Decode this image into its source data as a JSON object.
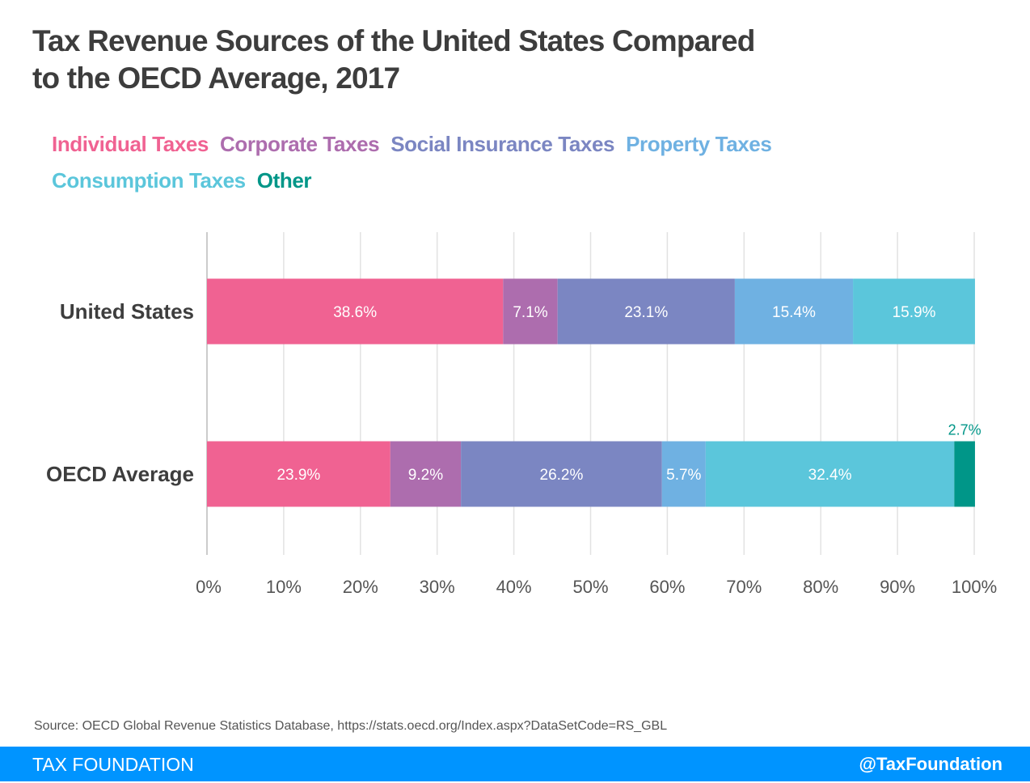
{
  "chart_data": {
    "type": "bar",
    "orientation": "horizontal",
    "stacked": true,
    "title": "Tax Revenue Sources of the United States Compared to the OECD Average, 2017",
    "categories": [
      "United States",
      "OECD Average"
    ],
    "series": [
      {
        "name": "Individual Taxes",
        "color": "#f06292",
        "values": [
          38.6,
          23.9
        ],
        "labels": [
          "38.6%",
          "23.9%"
        ]
      },
      {
        "name": "Corporate Taxes",
        "color": "#ad6dae",
        "values": [
          7.1,
          9.2
        ],
        "labels": [
          "7.1%",
          "9.2%"
        ]
      },
      {
        "name": "Social Insurance Taxes",
        "color": "#7b86c2",
        "values": [
          23.1,
          26.2
        ],
        "labels": [
          "23.1%",
          "26.2%"
        ]
      },
      {
        "name": "Property Taxes",
        "color": "#6fb1e2",
        "values": [
          15.4,
          5.7
        ],
        "labels": [
          "15.4%",
          "5.7%"
        ]
      },
      {
        "name": "Consumption Taxes",
        "color": "#5bc6db",
        "values": [
          15.9,
          32.4
        ],
        "labels": [
          "15.9%",
          "32.4%"
        ]
      },
      {
        "name": "Other",
        "color": "#009688",
        "values": [
          0,
          2.7
        ],
        "labels": [
          "",
          "2.7%"
        ]
      }
    ],
    "xlim": [
      0,
      100
    ],
    "xticks": [
      "0%",
      "10%",
      "20%",
      "30%",
      "40%",
      "50%",
      "60%",
      "70%",
      "80%",
      "90%",
      "100%"
    ],
    "xlabel": "",
    "ylabel": "",
    "grid": true,
    "legend_position": "top"
  },
  "header": {
    "title_line1": "Tax Revenue Sources of the United States Compared",
    "title_line2": "to the OECD Average, 2017"
  },
  "source": "Source: OECD Global Revenue Statistics Database, https://stats.oecd.org/Index.aspx?DataSetCode=RS_GBL",
  "footer": {
    "brand": "TAX FOUNDATION",
    "handle": "@TaxFoundation",
    "color": "#0094ff"
  }
}
